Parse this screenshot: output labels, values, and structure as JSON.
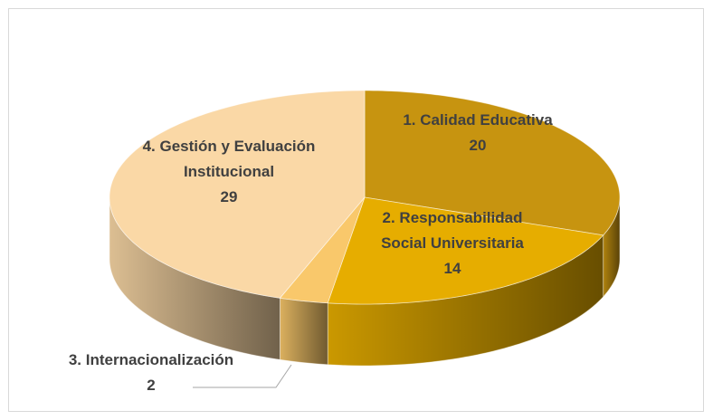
{
  "chart_data": {
    "type": "pie",
    "categories": [
      "1. Calidad Educativa",
      "2. Responsabilidad Social Universitaria",
      "3. Internacionalización",
      "4. Gestión y Evaluación Institucional"
    ],
    "values": [
      20,
      14,
      2,
      29
    ],
    "colors": [
      "#c79410",
      "#e6ad00",
      "#f9c86b",
      "#fad8a6"
    ]
  }
}
